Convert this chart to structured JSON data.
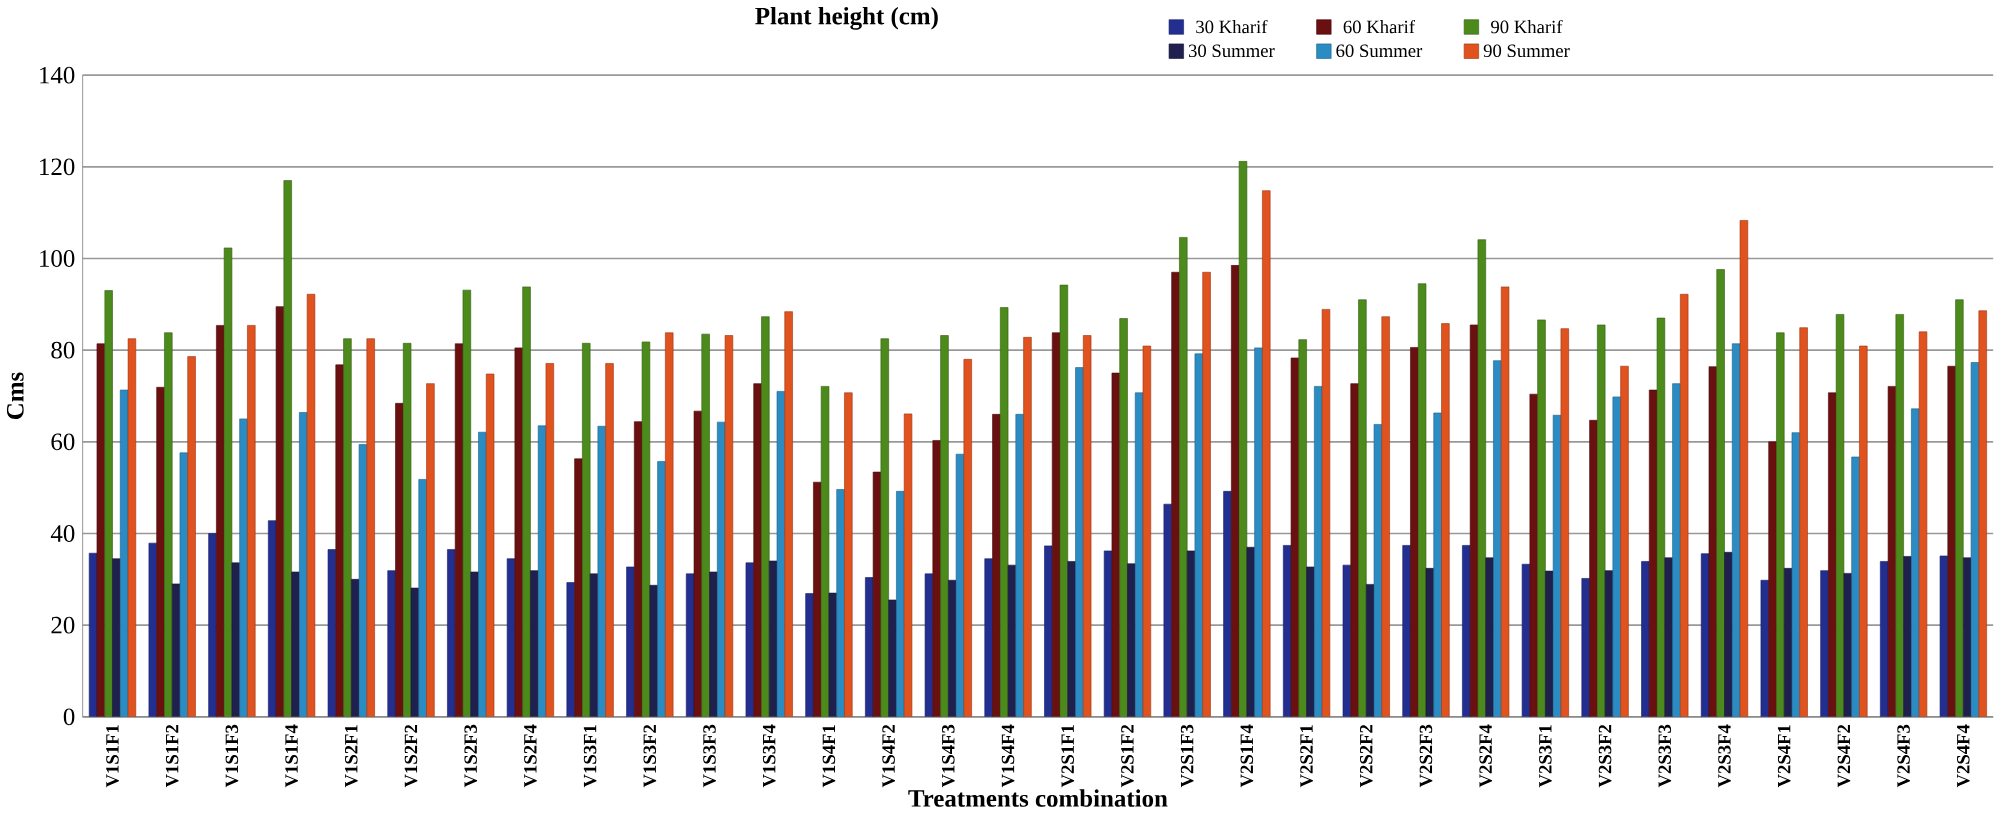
{
  "chart_data": {
    "type": "bar",
    "title": "Plant height (cm)",
    "xlabel": "Treatments combination",
    "ylabel": "Cms",
    "categories": [
      "V1S1F1",
      "V1S1F2",
      "V1S1F3",
      "V1S1F4",
      "V1S2F1",
      "V1S2F2",
      "V1S2F3",
      "V1S2F4",
      "V1S3F1",
      "V1S3F2",
      "V1S3F3",
      "V1S3F4",
      "V1S4F1",
      "V1S4F2",
      "V1S4F3",
      "V1S4F4",
      "V2S1F1",
      "V2S1F2",
      "V2S1F3",
      "V2S1F4",
      "V2S2F1",
      "V2S2F2",
      "V2S2F3",
      "V2S2F4",
      "V2S3F1",
      "V2S3F2",
      "V2S3F3",
      "V2S3F4",
      "V2S4F1",
      "V2S4F2",
      "V2S4F3",
      "V2S4F4"
    ],
    "series": [
      {
        "name": "30 Kharif",
        "color": "#232f90",
        "values": [
          35.7,
          37.9,
          40,
          42.8,
          36.5,
          31.9,
          36.5,
          34.5,
          29.3,
          32.7,
          31.2,
          33.6,
          26.9,
          30.4,
          31.2,
          34.5,
          37.3,
          36.2,
          46.4,
          49.2,
          37.4,
          33.1,
          37.4,
          37.4,
          33.3,
          30.2,
          33.9,
          35.6,
          29.8,
          31.9,
          33.9,
          35.1
        ]
      },
      {
        "name": "60 Kharif",
        "color": "#6a1010",
        "values": [
          81.4,
          71.9,
          85.4,
          89.5,
          76.8,
          68.4,
          81.4,
          80.5,
          56.3,
          64.4,
          66.7,
          72.7,
          51.2,
          53.4,
          60.3,
          66,
          83.8,
          75,
          97,
          98.5,
          78.3,
          72.7,
          80.6,
          85.5,
          70.4,
          64.7,
          71.3,
          76.4,
          60,
          70.7,
          72.1,
          76.5
        ]
      },
      {
        "name": "90 Kharif",
        "color": "#4c8a1c",
        "values": [
          93,
          83.8,
          102.3,
          117,
          82.5,
          81.5,
          93.1,
          93.8,
          81.5,
          81.8,
          83.5,
          87.3,
          72.1,
          82.5,
          83.2,
          89.3,
          94.2,
          86.9,
          104.6,
          121.2,
          82.3,
          91,
          94.5,
          104.1,
          86.6,
          85.5,
          87,
          97.6,
          83.8,
          87.8,
          87.8,
          91
        ]
      },
      {
        "name": "30 Summer",
        "color": "#20204e",
        "values": [
          34.5,
          29,
          33.6,
          31.6,
          30,
          28.1,
          31.6,
          31.9,
          31.2,
          28.7,
          31.6,
          34,
          27,
          25.5,
          29.8,
          33.1,
          33.9,
          33.4,
          36.2,
          37,
          32.7,
          28.9,
          32.4,
          34.7,
          31.8,
          31.9,
          34.7,
          35.9,
          32.4,
          31.3,
          35,
          34.7
        ]
      },
      {
        "name": "60 Summer",
        "color": "#2b8cc4",
        "values": [
          71.3,
          57.6,
          65,
          66.4,
          59.4,
          51.8,
          62.1,
          63.5,
          63.4,
          55.7,
          64.3,
          71,
          49.6,
          49.2,
          57.3,
          66,
          76.2,
          70.7,
          79.2,
          80.5,
          72.1,
          63.8,
          66.3,
          77.7,
          65.8,
          69.8,
          72.7,
          81.4,
          62,
          56.7,
          67.2,
          77.3
        ]
      },
      {
        "name": "90 Summer",
        "color": "#e0521e",
        "values": [
          82.5,
          78.6,
          85.4,
          92.2,
          82.5,
          72.7,
          74.8,
          77.1,
          77.1,
          83.8,
          83.2,
          88.4,
          70.7,
          66.1,
          78,
          82.8,
          83.2,
          80.9,
          97,
          114.8,
          88.9,
          87.3,
          85.8,
          93.8,
          84.7,
          76.5,
          92.2,
          108.3,
          84.9,
          80.9,
          84,
          88.6
        ]
      }
    ],
    "ylim": [
      0,
      140
    ],
    "yticks": [
      0,
      20,
      40,
      60,
      80,
      100,
      120,
      140
    ],
    "grid": "y",
    "legend": "top right"
  }
}
